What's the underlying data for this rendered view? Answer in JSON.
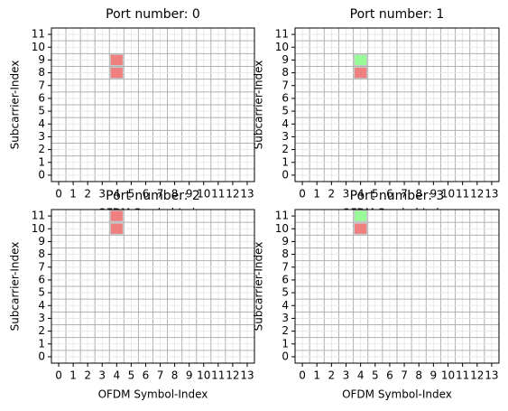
{
  "chart_data": [
    {
      "type": "grid",
      "title": "Port number: 0",
      "x_label": "OFDM Symbol-Index",
      "y_label": "Subcarrier-Index",
      "xlim": [
        -0.5,
        13.5
      ],
      "ylim": [
        -0.5,
        11.5
      ],
      "xticks": [
        0,
        1,
        2,
        3,
        4,
        5,
        6,
        7,
        8,
        9,
        10,
        11,
        12,
        13
      ],
      "yticks": [
        0,
        1,
        2,
        3,
        4,
        5,
        6,
        7,
        8,
        9,
        10,
        11
      ],
      "grid": true,
      "cells": [
        {
          "x": 4,
          "y": 8,
          "color": "#f08080"
        },
        {
          "x": 4,
          "y": 9,
          "color": "#f08080"
        }
      ]
    },
    {
      "type": "grid",
      "title": "Port number: 1",
      "x_label": "OFDM Symbol-Index",
      "y_label": "Subcarrier-Index",
      "xlim": [
        -0.5,
        13.5
      ],
      "ylim": [
        -0.5,
        11.5
      ],
      "xticks": [
        0,
        1,
        2,
        3,
        4,
        5,
        6,
        7,
        8,
        9,
        10,
        11,
        12,
        13
      ],
      "yticks": [
        0,
        1,
        2,
        3,
        4,
        5,
        6,
        7,
        8,
        9,
        10,
        11
      ],
      "grid": true,
      "cells": [
        {
          "x": 4,
          "y": 8,
          "color": "#f08080"
        },
        {
          "x": 4,
          "y": 9,
          "color": "#98fb98"
        }
      ]
    },
    {
      "type": "grid",
      "title": "Port number: 2",
      "x_label": "OFDM Symbol-Index",
      "y_label": "Subcarrier-Index",
      "xlim": [
        -0.5,
        13.5
      ],
      "ylim": [
        -0.5,
        11.5
      ],
      "xticks": [
        0,
        1,
        2,
        3,
        4,
        5,
        6,
        7,
        8,
        9,
        10,
        11,
        12,
        13
      ],
      "yticks": [
        0,
        1,
        2,
        3,
        4,
        5,
        6,
        7,
        8,
        9,
        10,
        11
      ],
      "grid": true,
      "cells": [
        {
          "x": 4,
          "y": 10,
          "color": "#f08080"
        },
        {
          "x": 4,
          "y": 11,
          "color": "#f08080"
        }
      ]
    },
    {
      "type": "grid",
      "title": "Port number: 3",
      "x_label": "OFDM Symbol-Index",
      "y_label": "Subcarrier-Index",
      "xlim": [
        -0.5,
        13.5
      ],
      "ylim": [
        -0.5,
        11.5
      ],
      "xticks": [
        0,
        1,
        2,
        3,
        4,
        5,
        6,
        7,
        8,
        9,
        10,
        11,
        12,
        13
      ],
      "yticks": [
        0,
        1,
        2,
        3,
        4,
        5,
        6,
        7,
        8,
        9,
        10,
        11
      ],
      "grid": true,
      "cells": [
        {
          "x": 4,
          "y": 10,
          "color": "#f08080"
        },
        {
          "x": 4,
          "y": 11,
          "color": "#98fb98"
        }
      ]
    }
  ]
}
